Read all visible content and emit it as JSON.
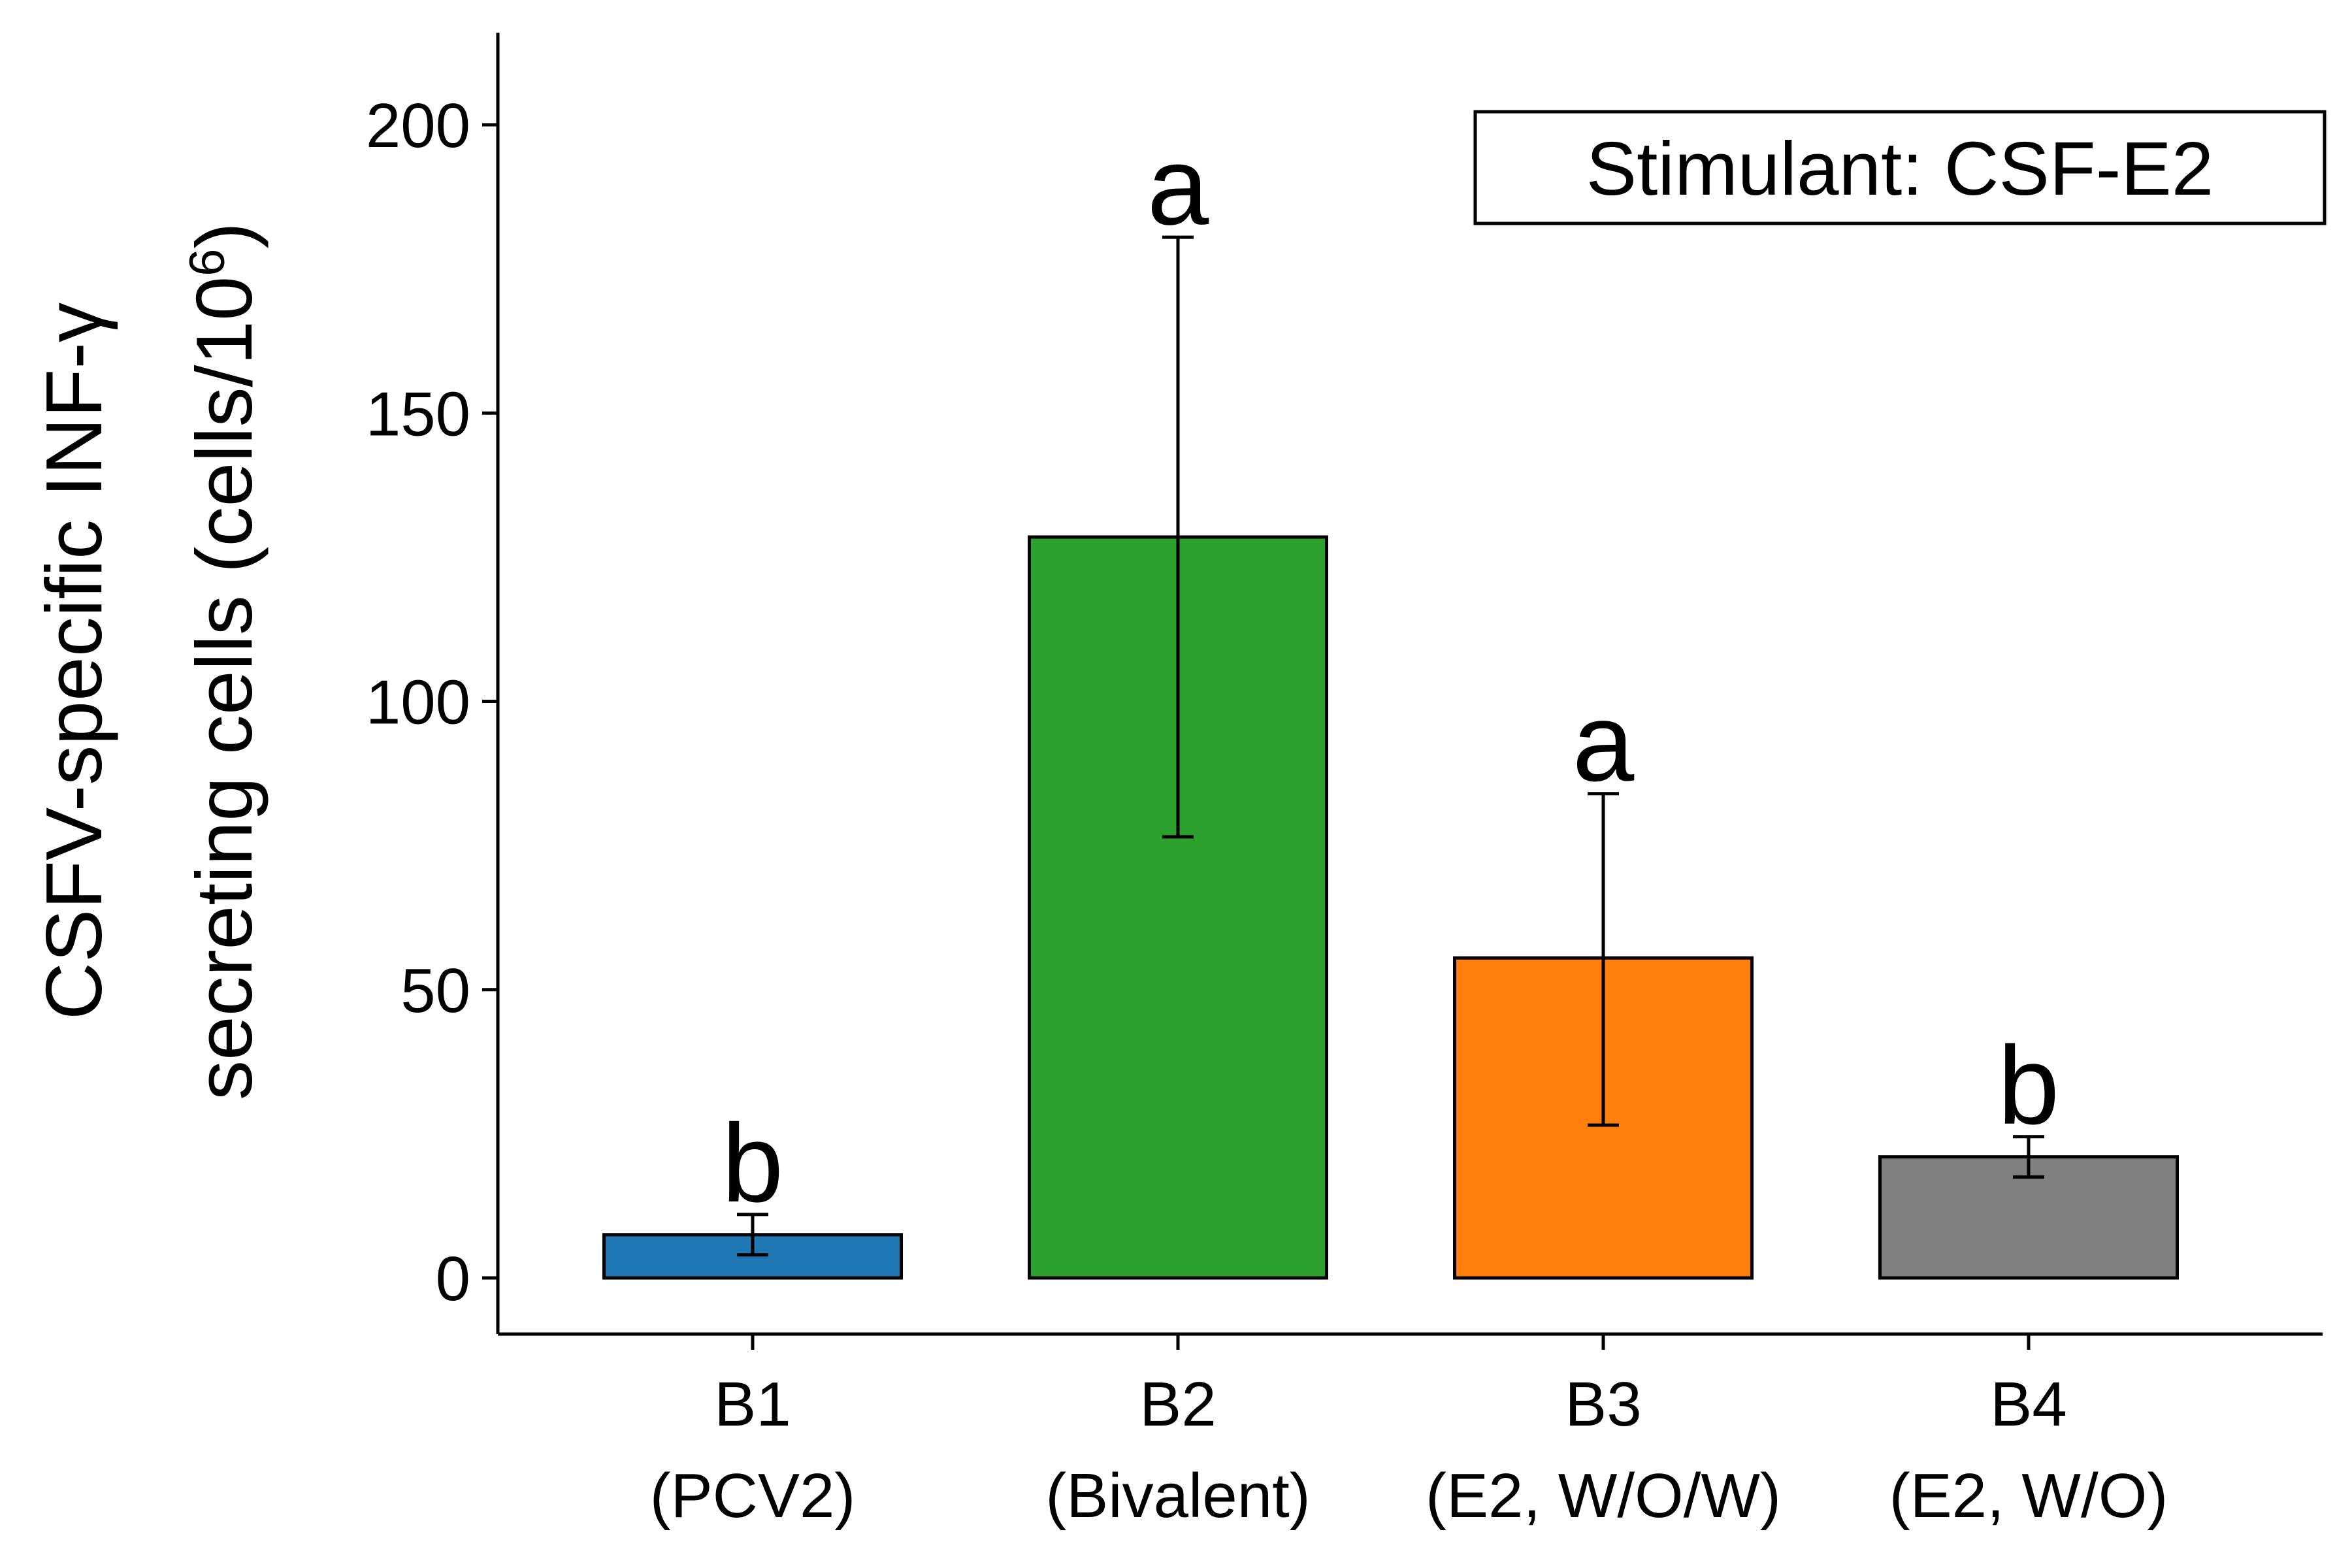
{
  "chart_data": {
    "type": "bar",
    "categories": [
      {
        "code": "B1",
        "group": "(PCV2)"
      },
      {
        "code": "B2",
        "group": "(Bivalent)"
      },
      {
        "code": "B3",
        "group": "(E2, W/O/W)"
      },
      {
        "code": "B4",
        "group": "(E2, W/O)"
      }
    ],
    "values": [
      7.5,
      128.5,
      55.5,
      21
    ],
    "error_low": [
      4,
      76.5,
      26.5,
      17.5
    ],
    "error_high": [
      11,
      180.5,
      84,
      24.5
    ],
    "significance": [
      "b",
      "a",
      "a",
      "b"
    ],
    "colors": [
      "#1f77b4",
      "#2ca02c",
      "#ff7f0e",
      "#808080"
    ],
    "ylabel_line1": "CSFV-specific INF-γ",
    "ylabel_line2": "secreting cells (cells/10",
    "ylabel_sup": "6",
    "ylabel_close": ")",
    "ylim": [
      -10,
      215
    ],
    "yticks": [
      "0",
      "50",
      "100",
      "150",
      "200"
    ],
    "annotation": "Stimulant: CSF-E2",
    "grid": false,
    "annotation_position": "top-right"
  }
}
